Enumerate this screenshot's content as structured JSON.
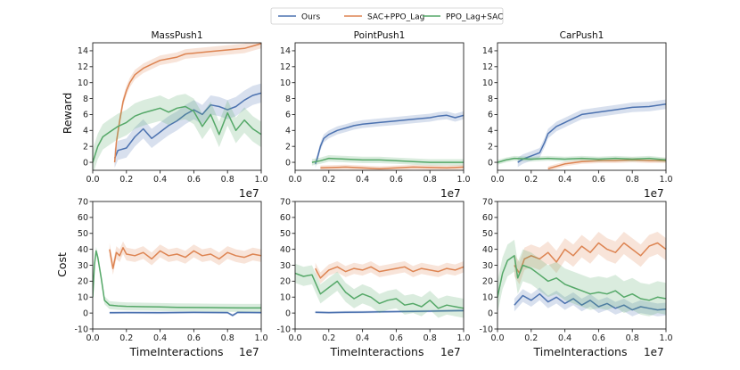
{
  "colors": {
    "ours": "#4c72b0",
    "sac_ppo": "#dd8452",
    "ppo_sac": "#55a868"
  },
  "legend": [
    {
      "key": "ours",
      "label": "Ours"
    },
    {
      "key": "sac_ppo",
      "label": "SAC+PPO_Lag"
    },
    {
      "key": "ppo_sac",
      "label": "PPO_Lag+SAC"
    }
  ],
  "axis_labels": {
    "reward": "Reward",
    "cost": "Cost",
    "x": "TimeInteractions",
    "x_multiplier": "1e7"
  },
  "chart_data": [
    {
      "type": "line",
      "title": "MassPush1",
      "ylabel": "Reward",
      "xlabel": "",
      "xlim": [
        0,
        1.0
      ],
      "ylim": [
        -1,
        15
      ],
      "xticks": [
        "0.0",
        "0.2",
        "0.4",
        "0.6",
        "0.8",
        "1.0"
      ],
      "yticks": [
        "0",
        "2",
        "4",
        "6",
        "8",
        "10",
        "12",
        "14"
      ],
      "series": [
        {
          "name": "Ours",
          "key": "ours",
          "x": [
            0.13,
            0.15,
            0.2,
            0.25,
            0.3,
            0.35,
            0.4,
            0.45,
            0.5,
            0.55,
            0.6,
            0.65,
            0.7,
            0.75,
            0.8,
            0.85,
            0.9,
            0.95,
            1.0
          ],
          "y": [
            0.5,
            1.5,
            1.8,
            3.2,
            4.2,
            3.0,
            3.8,
            4.6,
            5.2,
            6.0,
            6.6,
            6.0,
            7.2,
            7.0,
            6.6,
            7.0,
            7.8,
            8.4,
            8.7
          ],
          "band": 1.2
        },
        {
          "name": "SAC+PPO_Lag",
          "key": "sac_ppo",
          "x": [
            0.13,
            0.14,
            0.16,
            0.18,
            0.2,
            0.22,
            0.25,
            0.3,
            0.35,
            0.4,
            0.45,
            0.5,
            0.55,
            0.6,
            0.7,
            0.8,
            0.9,
            0.95,
            1.0
          ],
          "y": [
            0,
            2.5,
            5.2,
            7.6,
            9.0,
            10.0,
            11.0,
            11.8,
            12.3,
            12.8,
            13.0,
            13.2,
            13.6,
            13.7,
            13.9,
            14.1,
            14.3,
            14.6,
            14.9
          ],
          "band": 0.6
        },
        {
          "name": "PPO_Lag+SAC",
          "key": "ppo_sac",
          "x": [
            0.0,
            0.03,
            0.06,
            0.1,
            0.15,
            0.2,
            0.25,
            0.3,
            0.35,
            0.4,
            0.45,
            0.5,
            0.55,
            0.6,
            0.65,
            0.7,
            0.75,
            0.8,
            0.85,
            0.9,
            0.95,
            1.0
          ],
          "y": [
            0,
            2.0,
            3.2,
            3.8,
            4.5,
            5.0,
            5.8,
            6.2,
            6.5,
            6.8,
            6.3,
            6.8,
            7.0,
            6.4,
            4.5,
            6.0,
            3.5,
            6.2,
            4.0,
            5.3,
            4.2,
            3.5
          ],
          "band": 1.6
        }
      ]
    },
    {
      "type": "line",
      "title": "PointPush1",
      "ylabel": "",
      "xlabel": "",
      "xlim": [
        0,
        1.0
      ],
      "ylim": [
        -1,
        15
      ],
      "xticks": [
        "0.0",
        "0.2",
        "0.4",
        "0.6",
        "0.8",
        "1.0"
      ],
      "yticks": [
        "0",
        "2",
        "4",
        "6",
        "8",
        "10",
        "12",
        "14"
      ],
      "series": [
        {
          "name": "Ours",
          "key": "ours",
          "x": [
            0.12,
            0.13,
            0.15,
            0.17,
            0.2,
            0.25,
            0.3,
            0.35,
            0.4,
            0.5,
            0.6,
            0.7,
            0.8,
            0.85,
            0.9,
            0.95,
            1.0
          ],
          "y": [
            -0.2,
            0.4,
            2.0,
            3.0,
            3.5,
            4.0,
            4.3,
            4.6,
            4.8,
            5.0,
            5.2,
            5.4,
            5.6,
            5.8,
            5.9,
            5.6,
            5.9
          ],
          "band": 0.5
        },
        {
          "name": "SAC+PPO_Lag",
          "key": "sac_ppo",
          "x": [
            0.15,
            0.3,
            0.5,
            0.7,
            0.9,
            1.0
          ],
          "y": [
            -0.7,
            -0.6,
            -0.8,
            -0.6,
            -0.7,
            -0.6
          ],
          "band": 0.3
        },
        {
          "name": "PPO_Lag+SAC",
          "key": "ppo_sac",
          "x": [
            0.1,
            0.15,
            0.2,
            0.3,
            0.4,
            0.5,
            0.6,
            0.7,
            0.8,
            0.9,
            1.0
          ],
          "y": [
            0.0,
            0.2,
            0.5,
            0.4,
            0.3,
            0.3,
            0.2,
            0.1,
            0.0,
            0.0,
            0.0
          ],
          "band": 0.4
        }
      ]
    },
    {
      "type": "line",
      "title": "CarPush1",
      "ylabel": "",
      "xlabel": "",
      "xlim": [
        0,
        1.0
      ],
      "ylim": [
        -1,
        15
      ],
      "xticks": [
        "0.0",
        "0.2",
        "0.4",
        "0.6",
        "0.8",
        "1.0"
      ],
      "yticks": [
        "0",
        "2",
        "4",
        "6",
        "8",
        "10",
        "12",
        "14"
      ],
      "series": [
        {
          "name": "Ours",
          "key": "ours",
          "x": [
            0.12,
            0.15,
            0.2,
            0.25,
            0.28,
            0.3,
            0.35,
            0.4,
            0.45,
            0.5,
            0.6,
            0.7,
            0.8,
            0.9,
            1.0
          ],
          "y": [
            0.0,
            0.4,
            0.8,
            1.2,
            2.5,
            3.6,
            4.5,
            5.0,
            5.5,
            6.0,
            6.3,
            6.6,
            6.9,
            7.0,
            7.3
          ],
          "band": 0.6
        },
        {
          "name": "SAC+PPO_Lag",
          "key": "sac_ppo",
          "x": [
            0.3,
            0.4,
            0.5,
            0.6,
            0.7,
            0.8,
            0.9,
            1.0
          ],
          "y": [
            -0.8,
            -0.2,
            0.1,
            0.2,
            0.2,
            0.3,
            0.2,
            0.2
          ],
          "band": 0.3
        },
        {
          "name": "PPO_Lag+SAC",
          "key": "ppo_sac",
          "x": [
            0.0,
            0.05,
            0.1,
            0.2,
            0.3,
            0.4,
            0.5,
            0.6,
            0.7,
            0.8,
            0.9,
            1.0
          ],
          "y": [
            0.0,
            0.3,
            0.5,
            0.4,
            0.5,
            0.4,
            0.5,
            0.4,
            0.5,
            0.4,
            0.5,
            0.3
          ],
          "band": 0.3
        }
      ]
    },
    {
      "type": "line",
      "title": "",
      "ylabel": "Cost",
      "xlabel": "TimeInteractions",
      "xlim": [
        0,
        1.0
      ],
      "ylim": [
        -10,
        70
      ],
      "xticks": [
        "0.0",
        "0.2",
        "0.4",
        "0.6",
        "0.8",
        "1.0"
      ],
      "yticks": [
        "-10",
        "0",
        "10",
        "20",
        "30",
        "40",
        "50",
        "60",
        "70"
      ],
      "series": [
        {
          "name": "Ours",
          "key": "ours",
          "x": [
            0.1,
            0.2,
            0.4,
            0.6,
            0.8,
            0.83,
            0.86,
            1.0
          ],
          "y": [
            0.2,
            0.3,
            0.2,
            0.4,
            0.3,
            -1.5,
            0.4,
            0.3
          ],
          "band": 0.8
        },
        {
          "name": "SAC+PPO_Lag",
          "key": "sac_ppo",
          "x": [
            0.1,
            0.12,
            0.14,
            0.16,
            0.18,
            0.2,
            0.25,
            0.3,
            0.35,
            0.4,
            0.45,
            0.5,
            0.55,
            0.6,
            0.65,
            0.7,
            0.75,
            0.8,
            0.85,
            0.9,
            0.95,
            1.0
          ],
          "y": [
            40,
            28,
            38,
            36,
            41,
            37,
            36,
            38,
            34,
            39,
            36,
            37,
            35,
            39,
            36,
            37,
            34,
            38,
            36,
            35,
            37,
            36
          ],
          "band": 4
        },
        {
          "name": "PPO_Lag+SAC",
          "key": "ppo_sac",
          "x": [
            0.0,
            0.01,
            0.02,
            0.03,
            0.05,
            0.07,
            0.1,
            0.15,
            0.2,
            0.3,
            0.4,
            0.5,
            0.6,
            0.7,
            0.8,
            0.9,
            1.0
          ],
          "y": [
            10,
            30,
            39,
            35,
            22,
            8,
            5,
            4.5,
            4.2,
            4,
            3.8,
            3.6,
            3.5,
            3.4,
            3.3,
            3.2,
            3.2
          ],
          "band": 2.5
        }
      ]
    },
    {
      "type": "line",
      "title": "",
      "ylabel": "",
      "xlabel": "TimeInteractions",
      "xlim": [
        0,
        1.0
      ],
      "ylim": [
        -10,
        70
      ],
      "xticks": [
        "0.0",
        "0.2",
        "0.4",
        "0.6",
        "0.8",
        "1.0"
      ],
      "yticks": [
        "-10",
        "0",
        "10",
        "20",
        "30",
        "40",
        "50",
        "60",
        "70"
      ],
      "series": [
        {
          "name": "Ours",
          "key": "ours",
          "x": [
            0.12,
            0.2,
            0.3,
            0.4,
            0.5,
            0.6,
            0.7,
            0.8,
            0.9,
            1.0
          ],
          "y": [
            0.5,
            0.3,
            0.5,
            0.6,
            0.8,
            0.9,
            1.0,
            1.2,
            1.4,
            1.5
          ],
          "band": 0.8
        },
        {
          "name": "SAC+PPO_Lag",
          "key": "sac_ppo",
          "x": [
            0.12,
            0.15,
            0.2,
            0.25,
            0.3,
            0.35,
            0.4,
            0.45,
            0.5,
            0.55,
            0.6,
            0.65,
            0.7,
            0.75,
            0.8,
            0.85,
            0.9,
            0.95,
            1.0
          ],
          "y": [
            28,
            22,
            27,
            29,
            26,
            28,
            27,
            29,
            26,
            27,
            28,
            29,
            26,
            28,
            27,
            26,
            28,
            27,
            29
          ],
          "band": 3.5
        },
        {
          "name": "PPO_Lag+SAC",
          "key": "ppo_sac",
          "x": [
            0.0,
            0.05,
            0.1,
            0.15,
            0.2,
            0.25,
            0.3,
            0.35,
            0.4,
            0.45,
            0.5,
            0.55,
            0.6,
            0.65,
            0.7,
            0.75,
            0.8,
            0.85,
            0.9,
            0.95,
            1.0
          ],
          "y": [
            25,
            23,
            24,
            12,
            16,
            20,
            13,
            9,
            12,
            10,
            6,
            8,
            9,
            5,
            6,
            4,
            8,
            3,
            5,
            4,
            3
          ],
          "band": 6
        }
      ]
    },
    {
      "type": "line",
      "title": "",
      "ylabel": "",
      "xlabel": "TimeInteractions",
      "xlim": [
        0,
        1.0
      ],
      "ylim": [
        -10,
        70
      ],
      "xticks": [
        "0.0",
        "0.2",
        "0.4",
        "0.6",
        "0.8",
        "1.0"
      ],
      "yticks": [
        "-10",
        "0",
        "10",
        "20",
        "30",
        "40",
        "50",
        "60",
        "70"
      ],
      "series": [
        {
          "name": "Ours",
          "key": "ours",
          "x": [
            0.1,
            0.15,
            0.2,
            0.25,
            0.3,
            0.35,
            0.4,
            0.45,
            0.5,
            0.55,
            0.6,
            0.65,
            0.7,
            0.75,
            0.8,
            0.85,
            0.9,
            0.95,
            1.0
          ],
          "y": [
            5,
            11,
            8,
            12,
            7,
            10,
            6,
            9,
            5,
            8,
            4,
            6,
            3,
            5,
            2,
            4,
            3,
            2,
            2.5
          ],
          "band": 4
        },
        {
          "name": "SAC+PPO_Lag",
          "key": "sac_ppo",
          "x": [
            0.1,
            0.13,
            0.16,
            0.2,
            0.25,
            0.3,
            0.35,
            0.4,
            0.45,
            0.5,
            0.55,
            0.6,
            0.65,
            0.7,
            0.75,
            0.8,
            0.85,
            0.9,
            0.95,
            1.0
          ],
          "y": [
            30,
            25,
            34,
            36,
            34,
            38,
            32,
            40,
            36,
            42,
            38,
            44,
            40,
            38,
            44,
            40,
            36,
            42,
            44,
            40
          ],
          "band": 7
        },
        {
          "name": "PPO_Lag+SAC",
          "key": "ppo_sac",
          "x": [
            0.0,
            0.03,
            0.06,
            0.1,
            0.12,
            0.15,
            0.2,
            0.25,
            0.3,
            0.35,
            0.4,
            0.45,
            0.5,
            0.55,
            0.6,
            0.65,
            0.7,
            0.75,
            0.8,
            0.85,
            0.9,
            0.95,
            1.0
          ],
          "y": [
            10,
            25,
            33,
            36,
            22,
            30,
            28,
            24,
            20,
            22,
            18,
            16,
            14,
            12,
            13,
            12,
            14,
            10,
            12,
            9,
            8,
            10,
            9
          ],
          "band": 10
        }
      ]
    }
  ]
}
